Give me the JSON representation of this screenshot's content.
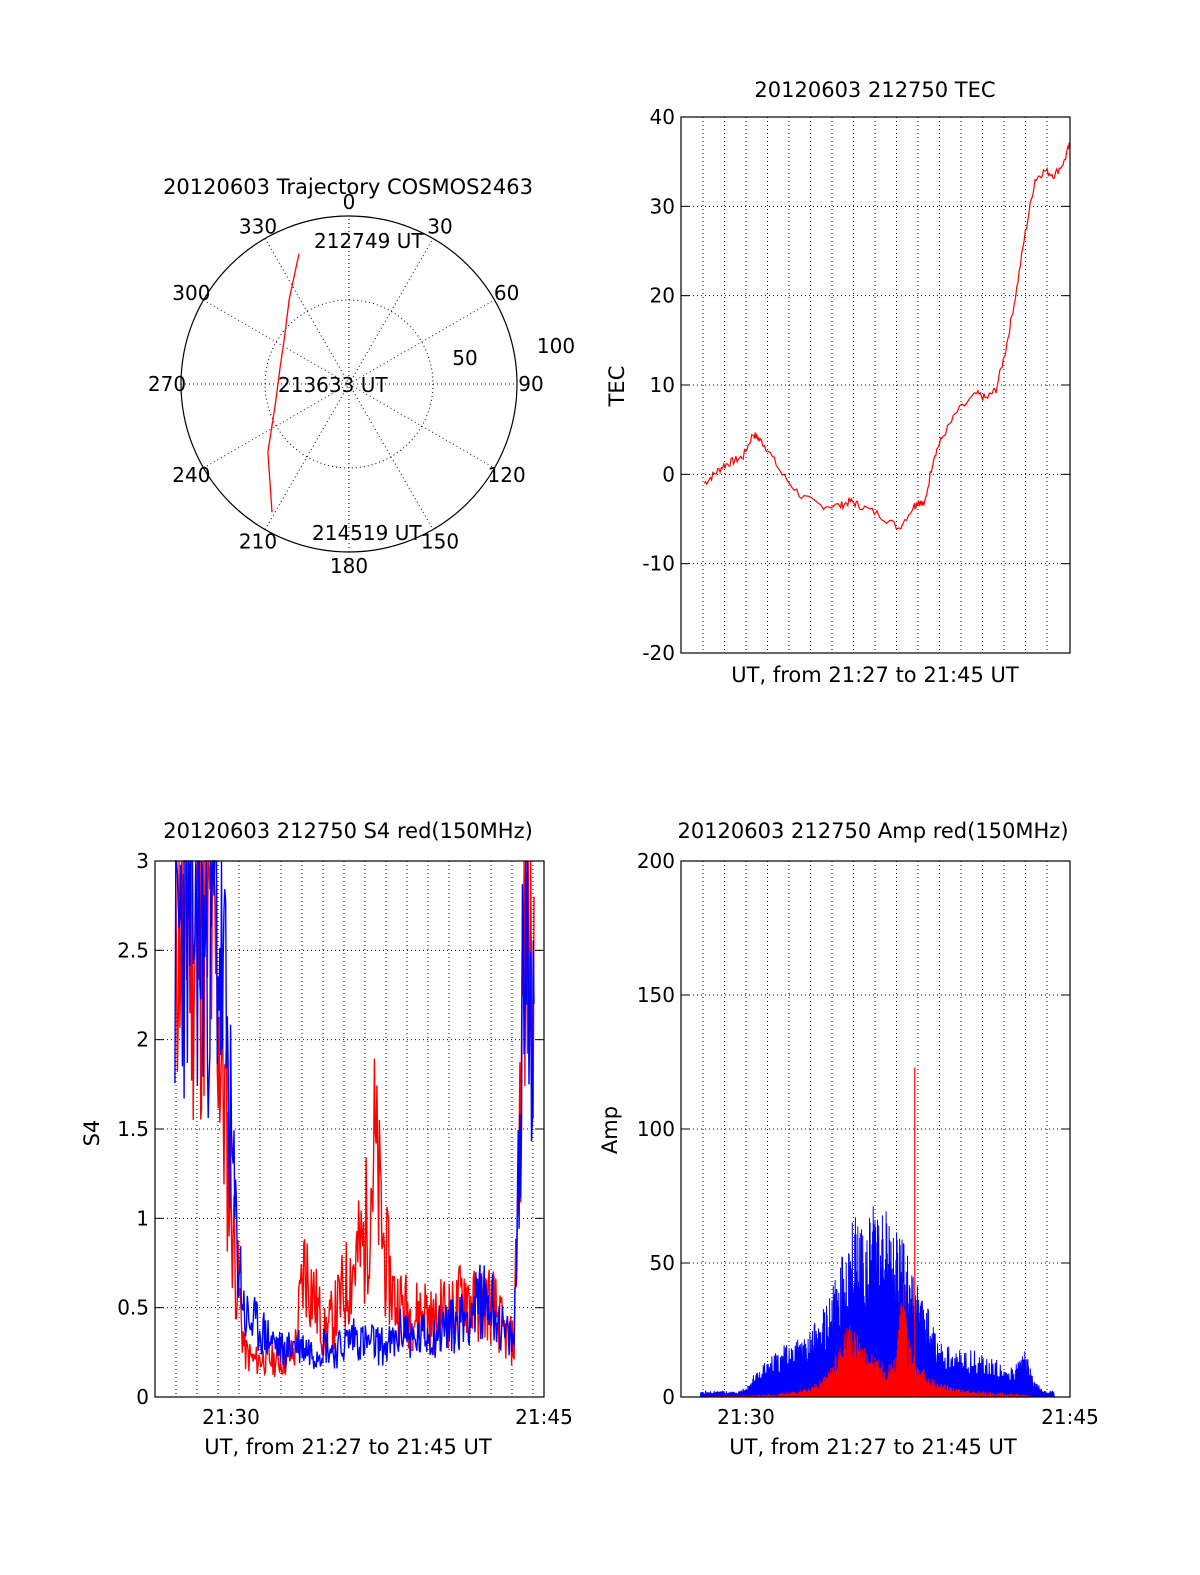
{
  "colors": {
    "red": "#ff0000",
    "blue": "#0000ff",
    "axis": "#000000"
  },
  "chart_data": [
    {
      "type": "polar",
      "title": "20120603 Trajectory COSMOS2463",
      "azimuth_labels": [
        "0",
        "30",
        "60",
        "90",
        "120",
        "150",
        "180",
        "210",
        "240",
        "270",
        "300",
        "330"
      ],
      "radius_labels": [
        "50",
        "100"
      ],
      "rlim": [
        0,
        100
      ],
      "grid": true,
      "annotations": [
        "212749 UT",
        "213633 UT",
        "214519 UT"
      ],
      "series": [
        {
          "color": "red",
          "points": [
            {
              "az": 339,
              "r": 83
            },
            {
              "az": 325,
              "r": 62
            },
            {
              "az": 305,
              "r": 47
            },
            {
              "az": 280,
              "r": 42
            },
            {
              "az": 256,
              "r": 45
            },
            {
              "az": 230,
              "r": 63
            },
            {
              "az": 211,
              "r": 89
            }
          ]
        }
      ]
    },
    {
      "type": "line",
      "title": "20120603 212750 TEC",
      "xlabel": "UT, from 21:27 to 21:45 UT",
      "ylabel": "TEC",
      "ylim": [
        -20,
        40
      ],
      "yticks": [
        "-20",
        "-10",
        "0",
        "10",
        "20",
        "30",
        "40"
      ],
      "xlim_min": [
        -1.2,
        18.8
      ],
      "grid": true,
      "series": [
        {
          "color": "red",
          "x": [
            0,
            0.5,
            1,
            1.5,
            2,
            2.5,
            2.8,
            3.2,
            4,
            5,
            6,
            7,
            7.5,
            8,
            9,
            10,
            10.8,
            11,
            11.3,
            11.8,
            12.2,
            13,
            14,
            14.5,
            15,
            15.5,
            16,
            16.5,
            17,
            17.5,
            18,
            18.5,
            18.8
          ],
          "y": [
            -1,
            0,
            1,
            1.5,
            2,
            4.5,
            4,
            3,
            0,
            -2.5,
            -3.5,
            -3.5,
            -3,
            -3.5,
            -4.5,
            -6,
            -3.5,
            -3,
            -3.5,
            2,
            4,
            7,
            9,
            8.5,
            9.5,
            14,
            20,
            27,
            33,
            34,
            33.5,
            35,
            37
          ]
        }
      ]
    },
    {
      "type": "line",
      "title": "20120603 212750 S4 red(150MHz)",
      "xlabel": "UT, from 21:27 to 21:45 UT",
      "ylabel": "S4",
      "ylim": [
        0,
        3
      ],
      "yticks": [
        "0",
        "0.5",
        "1",
        "1.5",
        "2",
        "2.5",
        "3"
      ],
      "xticks": [
        "21:30",
        "21:45"
      ],
      "grid": true,
      "series": [
        {
          "color": "red",
          "x": [
            0,
            0.5,
            1,
            1.5,
            2,
            2.5,
            3,
            3.5,
            4,
            4.5,
            5,
            5.5,
            6,
            6.5,
            7,
            7.5,
            8,
            8.5,
            9,
            9.5,
            10,
            10.5,
            11,
            11.5,
            12,
            12.5,
            13,
            13.5,
            14,
            14.5,
            15,
            15.5,
            16,
            16.5,
            17,
            17.5,
            18
          ],
          "y": [
            2.8,
            2.9,
            2.6,
            2.7,
            2.5,
            1.6,
            0.8,
            0.25,
            0.2,
            0.22,
            0.2,
            0.2,
            0.25,
            0.75,
            0.55,
            0.35,
            0.45,
            0.6,
            0.75,
            0.85,
            1.4,
            0.8,
            0.55,
            0.5,
            0.45,
            0.5,
            0.4,
            0.5,
            0.45,
            0.6,
            0.5,
            0.55,
            0.5,
            0.35,
            0.3,
            2.5,
            2.8
          ]
        },
        {
          "color": "blue",
          "x": [
            0,
            0.5,
            1,
            1.5,
            2,
            2.5,
            3,
            3.5,
            4,
            4.5,
            5,
            5.5,
            6,
            6.5,
            7,
            7.5,
            8,
            8.5,
            9,
            9.5,
            10,
            10.5,
            11,
            11.5,
            12,
            12.5,
            13,
            13.5,
            14,
            14.5,
            15,
            15.5,
            16,
            16.5,
            17,
            17.5,
            18
          ],
          "y": [
            2.5,
            2.7,
            2.8,
            2.5,
            2.7,
            2.2,
            1.0,
            0.45,
            0.4,
            0.35,
            0.3,
            0.25,
            0.3,
            0.28,
            0.25,
            0.3,
            0.25,
            0.3,
            0.35,
            0.3,
            0.3,
            0.28,
            0.3,
            0.4,
            0.3,
            0.35,
            0.35,
            0.4,
            0.4,
            0.45,
            0.5,
            0.55,
            0.5,
            0.35,
            0.3,
            2.6,
            2.2
          ]
        }
      ]
    },
    {
      "type": "line",
      "title": "20120603 212750 Amp red(150MHz)",
      "xlabel": "UT, from 21:27 to 21:45 UT",
      "ylabel": "Amp",
      "ylim": [
        0,
        200
      ],
      "yticks": [
        "0",
        "50",
        "100",
        "150",
        "200"
      ],
      "xticks": [
        "21:30",
        "21:45"
      ],
      "grid": true,
      "series": [
        {
          "color": "blue",
          "x": [
            0,
            1,
            2,
            2.5,
            3,
            4,
            5,
            5.5,
            6,
            6.5,
            7,
            7.5,
            8,
            8.5,
            9,
            9.5,
            10,
            10.5,
            11,
            11.5,
            12,
            13,
            14,
            15,
            16,
            16.5,
            17,
            17.5,
            18
          ],
          "y": [
            2,
            2,
            2,
            5,
            10,
            15,
            20,
            20,
            25,
            30,
            40,
            50,
            60,
            55,
            70,
            60,
            55,
            45,
            35,
            30,
            20,
            15,
            15,
            12,
            10,
            15,
            5,
            2,
            2
          ]
        },
        {
          "color": "red",
          "x": [
            0,
            4,
            5,
            5.5,
            6,
            6.5,
            7,
            7.5,
            8,
            8.5,
            9,
            9.5,
            10,
            10.3,
            10.5,
            11,
            11.5,
            12,
            13,
            14,
            16,
            17,
            18
          ],
          "y": [
            0,
            1,
            2,
            3,
            5,
            8,
            15,
            25,
            20,
            15,
            12,
            10,
            15,
            40,
            20,
            10,
            8,
            5,
            3,
            2,
            1,
            0,
            0
          ]
        }
      ]
    }
  ]
}
